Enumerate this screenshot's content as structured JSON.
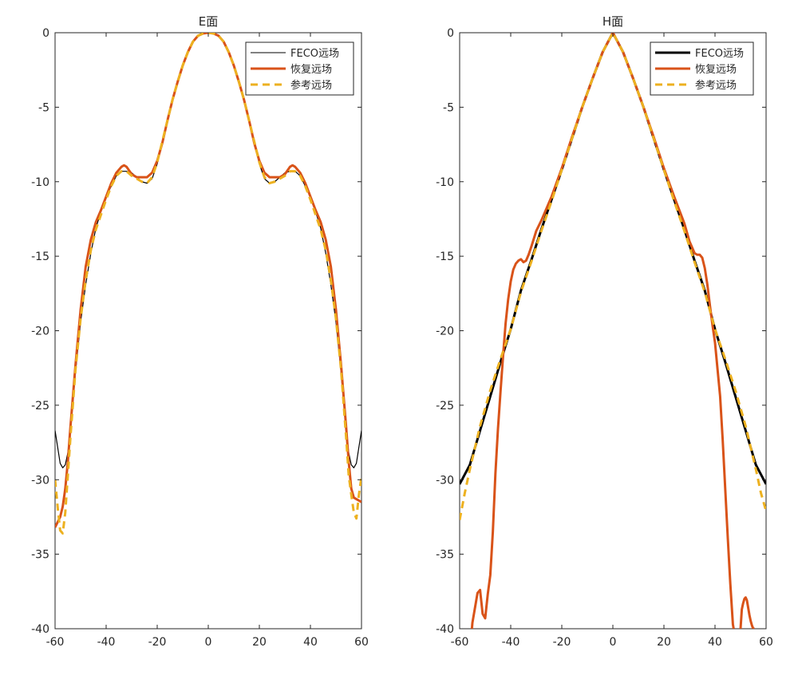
{
  "colors": {
    "feco": "#000000",
    "recovered": "#D95319",
    "reference": "#EDB120",
    "axis": "#262626",
    "background": "#FFFFFF"
  },
  "chart_data": [
    {
      "type": "line",
      "title": "E面",
      "xlabel": "",
      "ylabel": "",
      "xlim": [
        -60,
        60
      ],
      "ylim": [
        -40,
        0
      ],
      "xticks": [
        -60,
        -40,
        -20,
        0,
        20,
        40,
        60
      ],
      "yticks": [
        0,
        -5,
        -10,
        -15,
        -20,
        -25,
        -30,
        -35,
        -40
      ],
      "grid": false,
      "legend_position": "top-right",
      "series": [
        {
          "name": "FECO远场",
          "style": "solid-thin",
          "x": [
            -60,
            -58,
            -57,
            -56,
            -55,
            -54,
            -52,
            -50,
            -48,
            -46,
            -44,
            -42,
            -40,
            -38,
            -36,
            -34,
            -32,
            -30,
            -28,
            -26,
            -24,
            -22,
            -20,
            -18,
            -16,
            -14,
            -12,
            -10,
            -8,
            -6,
            -4,
            -2,
            0,
            2,
            4,
            6,
            8,
            10,
            12,
            14,
            16,
            18,
            20,
            22,
            24,
            26,
            28,
            30,
            32,
            34,
            36,
            38,
            40,
            42,
            44,
            46,
            48,
            50,
            52,
            54,
            55,
            56,
            57,
            58,
            60
          ],
          "y": [
            -26.7,
            -28.9,
            -29.2,
            -29.0,
            -28.2,
            -26.8,
            -22.8,
            -19.4,
            -16.9,
            -14.8,
            -13.1,
            -12.0,
            -11.0,
            -10.3,
            -9.6,
            -9.3,
            -9.3,
            -9.4,
            -9.7,
            -10.0,
            -10.1,
            -9.8,
            -8.8,
            -7.4,
            -5.9,
            -4.5,
            -3.3,
            -2.2,
            -1.3,
            -0.6,
            -0.2,
            -0.05,
            0,
            -0.05,
            -0.2,
            -0.6,
            -1.3,
            -2.2,
            -3.3,
            -4.5,
            -5.9,
            -7.4,
            -8.8,
            -9.8,
            -10.1,
            -10.0,
            -9.7,
            -9.4,
            -9.3,
            -9.3,
            -9.6,
            -10.3,
            -11.0,
            -12.0,
            -13.1,
            -14.8,
            -16.9,
            -19.4,
            -22.8,
            -26.8,
            -28.2,
            -29.0,
            -29.2,
            -28.9,
            -26.7
          ]
        },
        {
          "name": "恢复远场",
          "style": "solid-thick",
          "x": [
            -60,
            -58,
            -57,
            -56,
            -55,
            -54,
            -52,
            -50,
            -48,
            -46,
            -44,
            -42,
            -40,
            -38,
            -36,
            -34,
            -33,
            -32,
            -30,
            -28,
            -26,
            -24,
            -22,
            -20,
            -18,
            -16,
            -14,
            -12,
            -10,
            -8,
            -6,
            -4,
            -2,
            0,
            2,
            4,
            6,
            8,
            10,
            12,
            14,
            16,
            18,
            20,
            22,
            24,
            26,
            28,
            30,
            32,
            33,
            34,
            36,
            38,
            40,
            42,
            44,
            46,
            48,
            50,
            52,
            54,
            55,
            56,
            57,
            58,
            60
          ],
          "y": [
            -33.2,
            -32.5,
            -31.8,
            -30.6,
            -28.8,
            -26.5,
            -22.3,
            -18.6,
            -15.7,
            -13.9,
            -12.7,
            -11.9,
            -11.0,
            -10.1,
            -9.4,
            -9.0,
            -8.9,
            -9.0,
            -9.5,
            -9.7,
            -9.7,
            -9.7,
            -9.4,
            -8.6,
            -7.4,
            -5.9,
            -4.5,
            -3.3,
            -2.2,
            -1.3,
            -0.6,
            -0.2,
            -0.05,
            0,
            -0.05,
            -0.2,
            -0.6,
            -1.3,
            -2.2,
            -3.3,
            -4.5,
            -5.9,
            -7.4,
            -8.6,
            -9.4,
            -9.7,
            -9.7,
            -9.7,
            -9.5,
            -9.0,
            -8.9,
            -9.0,
            -9.4,
            -10.1,
            -11.0,
            -11.9,
            -12.7,
            -13.9,
            -15.7,
            -18.6,
            -22.3,
            -26.5,
            -28.8,
            -30.6,
            -31.2,
            -31.3,
            -31.5
          ]
        },
        {
          "name": "参考远场",
          "style": "dashed-thick",
          "x": [
            -60,
            -59,
            -58,
            -57,
            -56,
            -55,
            -54,
            -52,
            -50,
            -48,
            -46,
            -44,
            -42,
            -40,
            -38,
            -36,
            -34,
            -32,
            -30,
            -28,
            -26,
            -24,
            -22,
            -20,
            -18,
            -16,
            -14,
            -12,
            -10,
            -8,
            -6,
            -4,
            -2,
            0,
            2,
            4,
            6,
            8,
            10,
            12,
            14,
            16,
            18,
            20,
            22,
            24,
            26,
            28,
            30,
            32,
            34,
            36,
            38,
            40,
            42,
            44,
            46,
            48,
            50,
            52,
            54,
            55,
            56,
            57,
            58,
            59,
            60
          ],
          "y": [
            -30.0,
            -31.8,
            -33.4,
            -33.6,
            -32.2,
            -29.7,
            -27.2,
            -22.6,
            -19.2,
            -16.6,
            -14.6,
            -13.2,
            -12.2,
            -11.2,
            -10.3,
            -9.6,
            -9.3,
            -9.3,
            -9.6,
            -9.8,
            -10.0,
            -10.1,
            -9.7,
            -8.7,
            -7.3,
            -5.9,
            -4.5,
            -3.3,
            -2.2,
            -1.3,
            -0.6,
            -0.2,
            -0.05,
            0,
            -0.05,
            -0.2,
            -0.6,
            -1.3,
            -2.2,
            -3.3,
            -4.5,
            -5.9,
            -7.3,
            -8.7,
            -9.7,
            -10.1,
            -10.0,
            -9.8,
            -9.6,
            -9.3,
            -9.3,
            -9.6,
            -10.3,
            -11.2,
            -12.2,
            -13.2,
            -14.6,
            -16.6,
            -19.2,
            -22.6,
            -27.2,
            -29.7,
            -31.0,
            -32.2,
            -32.6,
            -31.0,
            -29.8
          ]
        }
      ]
    },
    {
      "type": "line",
      "title": "H面",
      "xlabel": "",
      "ylabel": "",
      "xlim": [
        -60,
        60
      ],
      "ylim": [
        -40,
        0
      ],
      "xticks": [
        -60,
        -40,
        -20,
        0,
        20,
        40,
        60
      ],
      "yticks": [
        0,
        -5,
        -10,
        -15,
        -20,
        -25,
        -30,
        -35,
        -40
      ],
      "grid": false,
      "legend_position": "top-right",
      "series": [
        {
          "name": "FECO远场",
          "style": "solid-thick",
          "x": [
            -60,
            -56,
            -52,
            -48,
            -44,
            -40,
            -36,
            -32,
            -28,
            -24,
            -20,
            -16,
            -12,
            -8,
            -4,
            0,
            4,
            8,
            12,
            16,
            20,
            24,
            28,
            32,
            36,
            40,
            44,
            48,
            52,
            56,
            60
          ],
          "y": [
            -30.3,
            -29.0,
            -26.7,
            -24.4,
            -22.1,
            -19.9,
            -17.3,
            -15.3,
            -13.2,
            -11.2,
            -9.2,
            -7.1,
            -5.0,
            -3.1,
            -1.3,
            0,
            -1.3,
            -3.1,
            -5.0,
            -7.1,
            -9.2,
            -11.2,
            -13.2,
            -15.3,
            -17.3,
            -19.9,
            -22.1,
            -24.4,
            -26.7,
            -29.0,
            -30.3
          ]
        },
        {
          "name": "恢复远场",
          "style": "solid-thick",
          "x": [
            -55.2,
            -55,
            -53,
            -52,
            -51,
            -50,
            -49,
            -48,
            -47,
            -46,
            -45,
            -44,
            -43,
            -42,
            -41,
            -40,
            -39,
            -38,
            -37,
            -36,
            -35,
            -34,
            -33,
            -32,
            -30,
            -28,
            -24,
            -20,
            -16,
            -12,
            -8,
            -4,
            0,
            4,
            8,
            12,
            16,
            20,
            24,
            28,
            30,
            32,
            33,
            34,
            35,
            36,
            37,
            38,
            39,
            40,
            41,
            42,
            43,
            44,
            45,
            46,
            47,
            47.3
          ],
          "y": [
            -40.0,
            -39.6,
            -37.6,
            -37.4,
            -39.0,
            -39.3,
            -37.7,
            -36.4,
            -33.5,
            -29.6,
            -26.6,
            -24.1,
            -21.7,
            -19.5,
            -17.9,
            -16.7,
            -15.9,
            -15.5,
            -15.3,
            -15.2,
            -15.4,
            -15.3,
            -14.9,
            -14.4,
            -13.3,
            -12.6,
            -11.0,
            -9.1,
            -7.0,
            -5.0,
            -3.1,
            -1.3,
            0,
            -1.3,
            -3.1,
            -5.0,
            -7.0,
            -9.1,
            -11.0,
            -12.8,
            -14.0,
            -14.8,
            -14.9,
            -14.9,
            -15.1,
            -15.8,
            -16.9,
            -18.3,
            -19.6,
            -20.8,
            -22.6,
            -24.4,
            -27.3,
            -30.6,
            -33.9,
            -37.0,
            -39.7,
            -40.0
          ]
        },
        {
          "name": "",
          "style": "solid-thick",
          "x": [
            50,
            50.5,
            51,
            51.5,
            52,
            52.5,
            53,
            53.5,
            54,
            54.5,
            55,
            55.5
          ],
          "y": [
            -40.0,
            -38.7,
            -38.3,
            -38.0,
            -37.9,
            -38.1,
            -38.6,
            -39.1,
            -39.5,
            -39.8,
            -40.0,
            -40.0
          ]
        },
        {
          "name": "参考远场",
          "style": "dashed-thick",
          "x": [
            -60,
            -58,
            -56,
            -52,
            -48,
            -44,
            -40,
            -36,
            -32,
            -28,
            -24,
            -20,
            -16,
            -12,
            -8,
            -4,
            0,
            4,
            8,
            12,
            16,
            20,
            24,
            28,
            32,
            36,
            40,
            44,
            48,
            52,
            56,
            58,
            60
          ],
          "y": [
            -32.7,
            -30.9,
            -29.3,
            -26.4,
            -24.0,
            -21.9,
            -19.9,
            -17.4,
            -15.4,
            -13.3,
            -11.3,
            -9.2,
            -7.1,
            -5.0,
            -3.1,
            -1.3,
            0,
            -1.3,
            -3.1,
            -5.0,
            -7.1,
            -9.2,
            -11.3,
            -13.3,
            -15.4,
            -17.4,
            -19.9,
            -21.9,
            -24.0,
            -26.4,
            -29.3,
            -30.9,
            -32.1
          ]
        }
      ]
    }
  ]
}
